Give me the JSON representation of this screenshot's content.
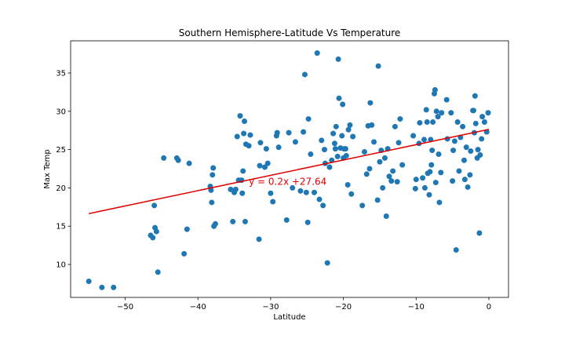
{
  "chart_data": {
    "type": "scatter",
    "title": "Southern Hemisphere-Latitude Vs Temperature",
    "xlabel": "Latitude",
    "ylabel": "Max Temp",
    "xlim": [
      -57.5,
      2.7
    ],
    "ylim": [
      5.7,
      39.2
    ],
    "xticks": [
      -50,
      -40,
      -30,
      -20,
      -10,
      0
    ],
    "xtick_labels": [
      "−50",
      "−40",
      "−30",
      "−20",
      "−10",
      "0"
    ],
    "yticks": [
      10,
      15,
      20,
      25,
      30,
      35
    ],
    "ytick_labels": [
      "10",
      "15",
      "20",
      "25",
      "30",
      "35"
    ],
    "grid": false,
    "point_color": "#1f77b4",
    "line_color": "#e00000",
    "series": [
      {
        "points": [
          [
            -55.0,
            7.8
          ],
          [
            -53.2,
            7.0
          ],
          [
            -51.6,
            7.0
          ],
          [
            -46.5,
            13.8
          ],
          [
            -46.2,
            13.5
          ],
          [
            -46.0,
            17.7
          ],
          [
            -45.9,
            14.8
          ],
          [
            -45.7,
            14.3
          ],
          [
            -45.5,
            9.0
          ],
          [
            -44.7,
            23.9
          ],
          [
            -42.9,
            23.9
          ],
          [
            -42.7,
            23.6
          ],
          [
            -41.9,
            11.4
          ],
          [
            -41.5,
            14.6
          ],
          [
            -41.2,
            23.2
          ],
          [
            -38.3,
            20.2
          ],
          [
            -38.2,
            19.7
          ],
          [
            -38.1,
            18.1
          ],
          [
            -38.0,
            21.7
          ],
          [
            -37.9,
            22.6
          ],
          [
            -37.8,
            15.0
          ],
          [
            -37.6,
            15.3
          ],
          [
            -35.5,
            19.8
          ],
          [
            -35.2,
            15.6
          ],
          [
            -35.0,
            19.4
          ],
          [
            -34.8,
            19.8
          ],
          [
            -34.6,
            26.7
          ],
          [
            -34.4,
            21.0
          ],
          [
            -34.2,
            29.4
          ],
          [
            -34.0,
            21.0
          ],
          [
            -33.9,
            19.3
          ],
          [
            -33.8,
            22.2
          ],
          [
            -33.7,
            27.1
          ],
          [
            -33.6,
            28.7
          ],
          [
            -33.5,
            15.6
          ],
          [
            -33.4,
            25.7
          ],
          [
            -33.0,
            25.5
          ],
          [
            -32.8,
            26.9
          ],
          [
            -31.6,
            13.3
          ],
          [
            -31.5,
            22.9
          ],
          [
            -31.4,
            25.9
          ],
          [
            -30.8,
            22.7
          ],
          [
            -30.6,
            25.1
          ],
          [
            -30.4,
            23.2
          ],
          [
            -30.0,
            19.3
          ],
          [
            -29.7,
            18.2
          ],
          [
            -29.2,
            26.8
          ],
          [
            -29.1,
            27.2
          ],
          [
            -28.9,
            25.3
          ],
          [
            -27.8,
            15.8
          ],
          [
            -27.5,
            27.2
          ],
          [
            -27.0,
            20.0
          ],
          [
            -26.6,
            26.0
          ],
          [
            -25.9,
            19.6
          ],
          [
            -25.5,
            27.3
          ],
          [
            -25.3,
            34.8
          ],
          [
            -25.1,
            19.4
          ],
          [
            -24.9,
            15.5
          ],
          [
            -24.8,
            29.0
          ],
          [
            -24.5,
            24.4
          ],
          [
            -24.0,
            19.4
          ],
          [
            -23.6,
            37.6
          ],
          [
            -23.3,
            18.5
          ],
          [
            -23.0,
            26.2
          ],
          [
            -22.8,
            17.7
          ],
          [
            -22.6,
            25.0
          ],
          [
            -22.5,
            23.2
          ],
          [
            -22.2,
            10.2
          ],
          [
            -21.9,
            22.7
          ],
          [
            -21.6,
            23.6
          ],
          [
            -21.4,
            27.1
          ],
          [
            -21.2,
            25.8
          ],
          [
            -21.1,
            25.1
          ],
          [
            -21.0,
            28.0
          ],
          [
            -20.8,
            24.1
          ],
          [
            -20.7,
            36.8
          ],
          [
            -20.6,
            31.7
          ],
          [
            -20.4,
            25.2
          ],
          [
            -20.2,
            26.8
          ],
          [
            -20.1,
            30.9
          ],
          [
            -20.0,
            23.9
          ],
          [
            -19.9,
            25.1
          ],
          [
            -19.7,
            25.1
          ],
          [
            -19.6,
            24.2
          ],
          [
            -19.4,
            20.4
          ],
          [
            -19.3,
            27.6
          ],
          [
            -19.1,
            28.2
          ],
          [
            -18.9,
            19.2
          ],
          [
            -18.7,
            26.7
          ],
          [
            -17.4,
            17.7
          ],
          [
            -17.1,
            24.7
          ],
          [
            -16.8,
            21.8
          ],
          [
            -16.6,
            28.1
          ],
          [
            -16.4,
            22.5
          ],
          [
            -16.3,
            31.1
          ],
          [
            -16.1,
            28.2
          ],
          [
            -15.8,
            26.0
          ],
          [
            -15.3,
            18.4
          ],
          [
            -15.2,
            35.9
          ],
          [
            -15.0,
            23.4
          ],
          [
            -14.8,
            24.9
          ],
          [
            -14.6,
            20.0
          ],
          [
            -14.3,
            23.9
          ],
          [
            -14.1,
            16.3
          ],
          [
            -13.9,
            25.1
          ],
          [
            -13.7,
            21.5
          ],
          [
            -13.4,
            20.9
          ],
          [
            -13.2,
            22.2
          ],
          [
            -12.9,
            28.0
          ],
          [
            -12.6,
            20.8
          ],
          [
            -12.4,
            25.9
          ],
          [
            -12.2,
            29.0
          ],
          [
            -11.9,
            23.0
          ],
          [
            -10.4,
            26.8
          ],
          [
            -10.1,
            19.9
          ],
          [
            -10.0,
            21.1
          ],
          [
            -9.6,
            25.8
          ],
          [
            -9.5,
            28.5
          ],
          [
            -9.1,
            21.3
          ],
          [
            -8.9,
            26.3
          ],
          [
            -8.8,
            20.0
          ],
          [
            -8.6,
            30.2
          ],
          [
            -8.5,
            28.6
          ],
          [
            -8.4,
            21.9
          ],
          [
            -8.2,
            19.1
          ],
          [
            -8.1,
            22.1
          ],
          [
            -8.0,
            26.3
          ],
          [
            -7.9,
            23.0
          ],
          [
            -7.8,
            24.9
          ],
          [
            -7.7,
            28.6
          ],
          [
            -7.5,
            32.3
          ],
          [
            -7.4,
            32.8
          ],
          [
            -7.3,
            20.7
          ],
          [
            -7.2,
            30.0
          ],
          [
            -7.0,
            29.3
          ],
          [
            -6.9,
            24.4
          ],
          [
            -6.8,
            18.1
          ],
          [
            -6.6,
            22.0
          ],
          [
            -6.5,
            29.8
          ],
          [
            -5.8,
            31.5
          ],
          [
            -5.7,
            26.4
          ],
          [
            -5.2,
            29.8
          ],
          [
            -5.0,
            20.9
          ],
          [
            -4.9,
            24.9
          ],
          [
            -4.7,
            26.1
          ],
          [
            -4.5,
            11.9
          ],
          [
            -4.3,
            28.6
          ],
          [
            -4.1,
            22.2
          ],
          [
            -3.9,
            26.6
          ],
          [
            -3.6,
            28.0
          ],
          [
            -3.4,
            23.6
          ],
          [
            -3.3,
            21.1
          ],
          [
            -3.1,
            25.3
          ],
          [
            -2.9,
            20.1
          ],
          [
            -2.6,
            21.7
          ],
          [
            -2.5,
            24.8
          ],
          [
            -2.2,
            30.1
          ],
          [
            -2.1,
            30.1
          ],
          [
            -2.0,
            27.2
          ],
          [
            -1.9,
            32.0
          ],
          [
            -1.8,
            28.4
          ],
          [
            -1.6,
            23.9
          ],
          [
            -1.5,
            25.0
          ],
          [
            -1.3,
            14.1
          ],
          [
            -1.2,
            24.3
          ],
          [
            -1.0,
            26.4
          ],
          [
            -0.9,
            29.3
          ],
          [
            -0.6,
            28.6
          ],
          [
            -0.3,
            27.3
          ],
          [
            -0.1,
            29.8
          ]
        ]
      }
    ],
    "regression": {
      "slope": 0.2,
      "intercept": 27.64,
      "x_range": [
        -55.0,
        0.0
      ],
      "label": "y = 0.2x +27.64",
      "label_x": -33.0,
      "label_y": 20.4
    }
  }
}
